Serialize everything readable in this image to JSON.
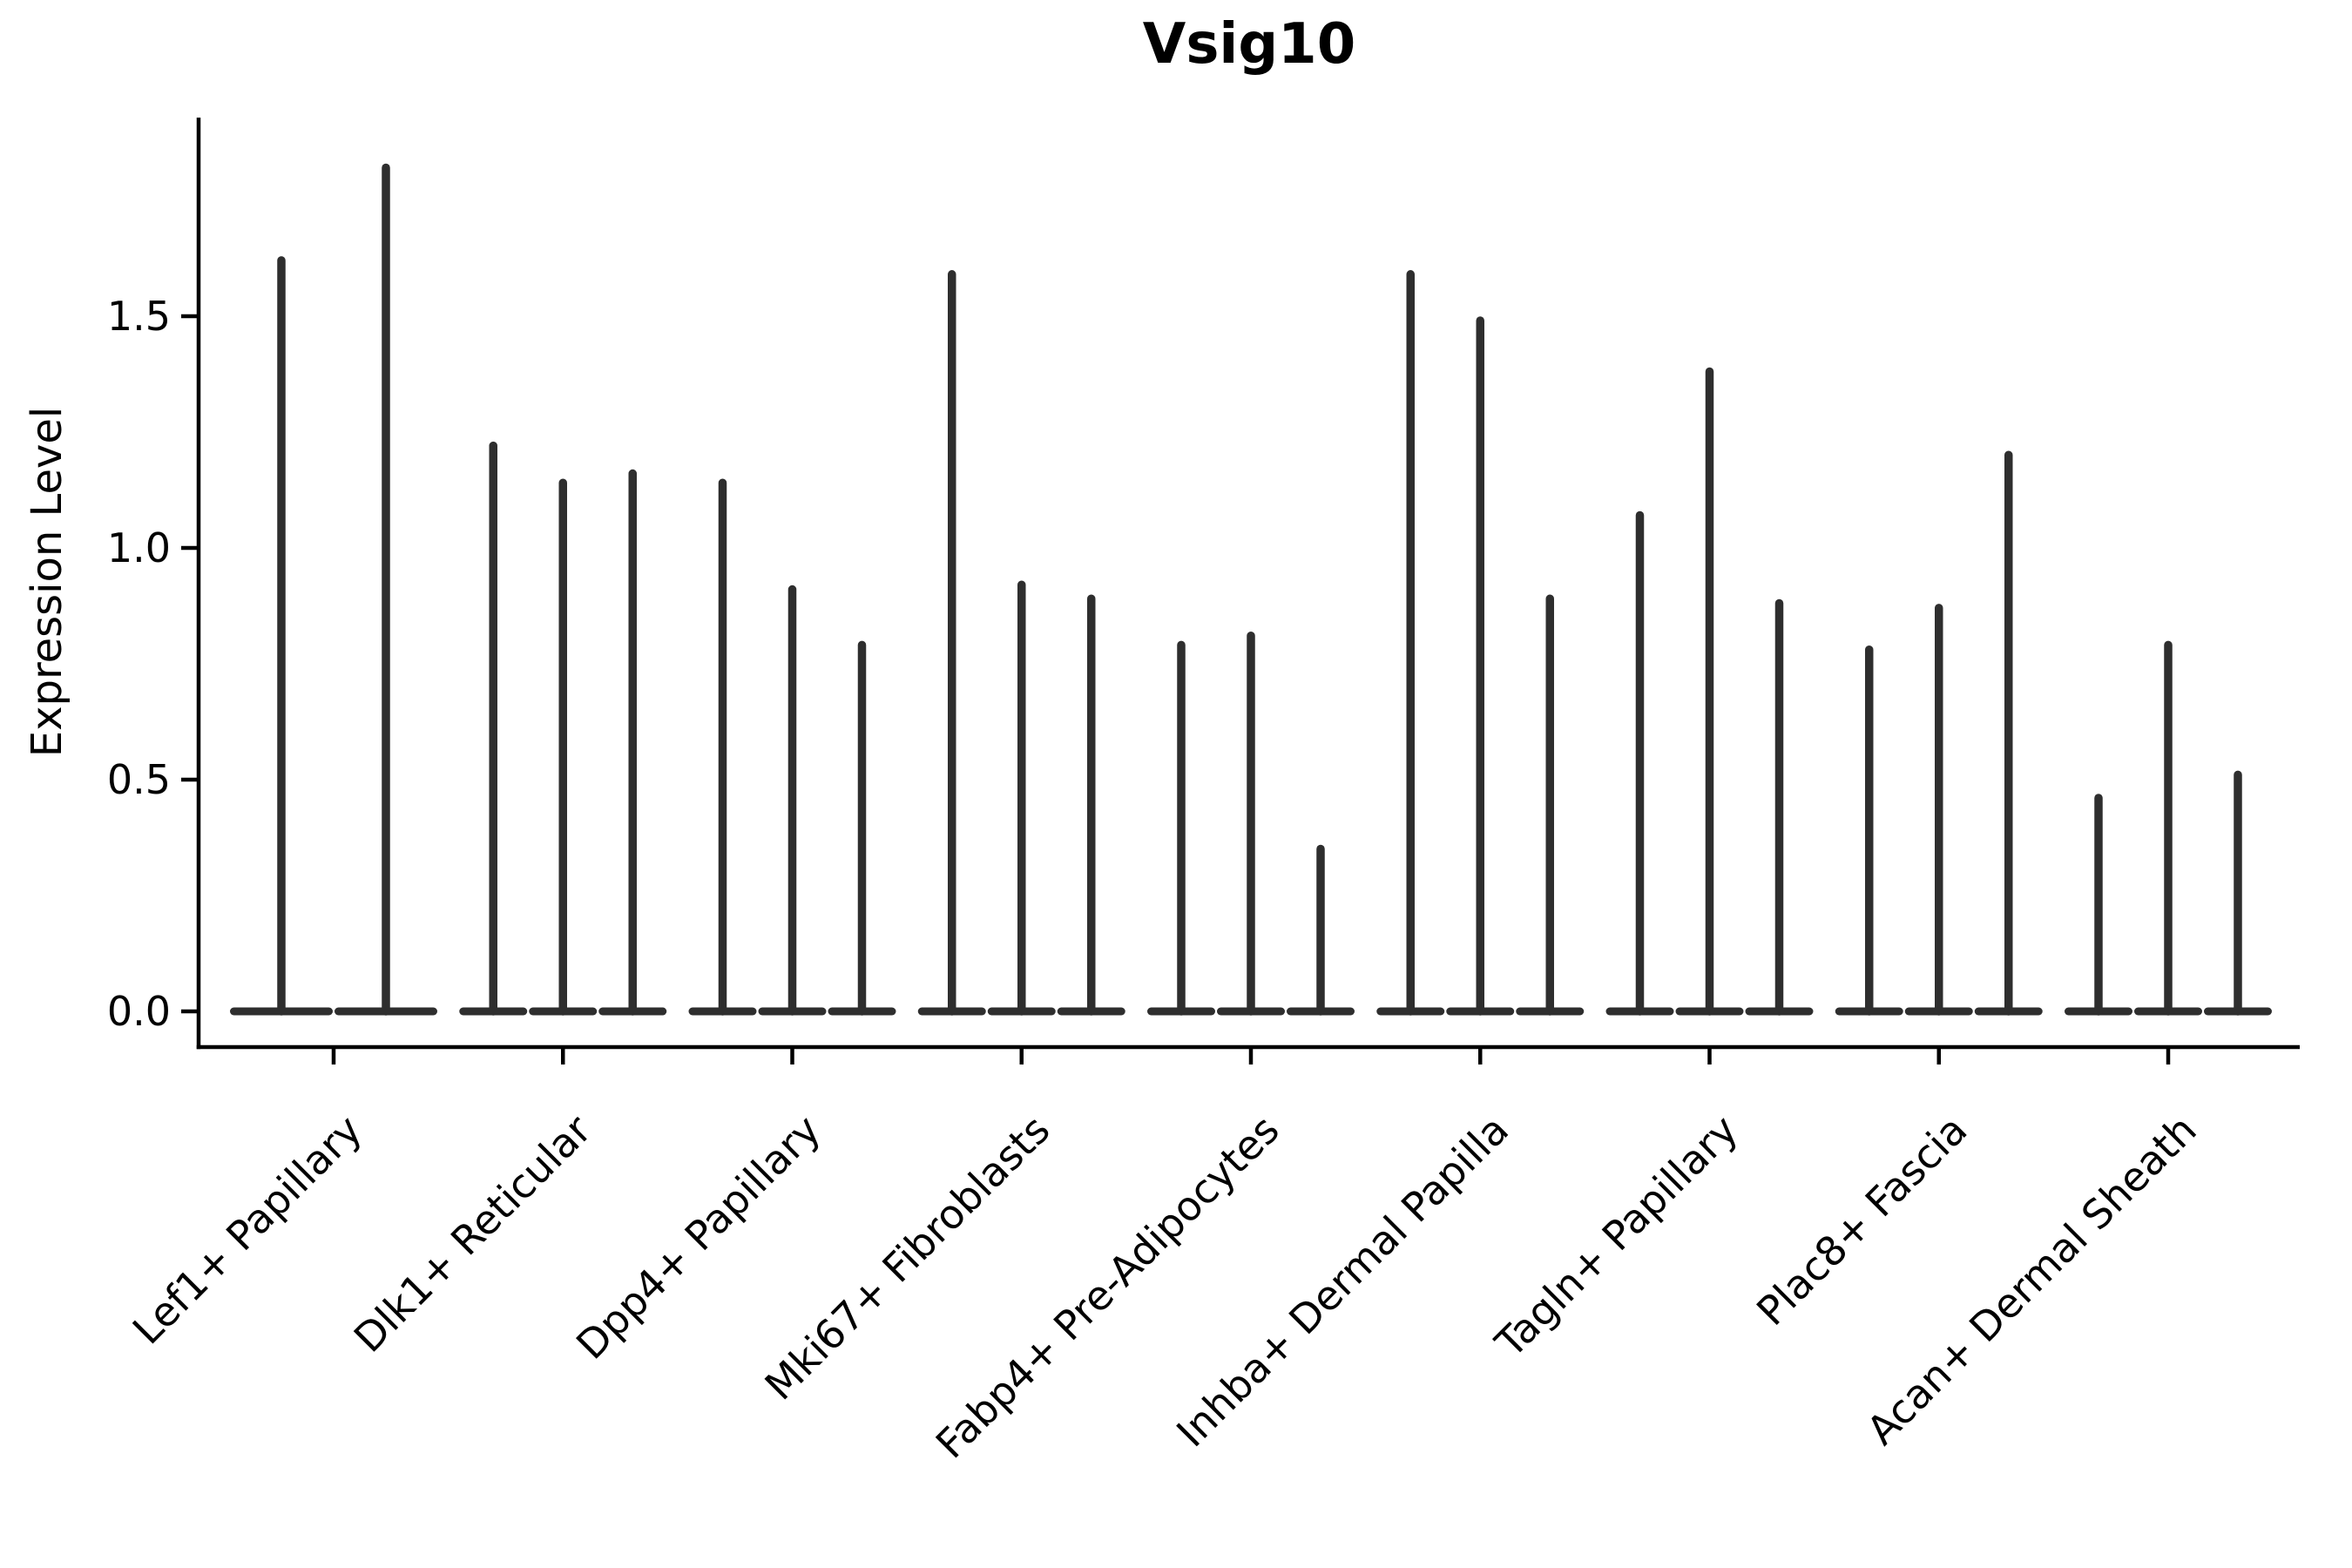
{
  "figure": {
    "title": "Vsig10",
    "ylabel": "Expression Level"
  },
  "chart_data": {
    "type": "violin",
    "title": "Vsig10",
    "xlabel": "",
    "ylabel": "Expression Level",
    "ylim": [
      -0.08,
      1.93
    ],
    "yticks": [
      0.0,
      0.5,
      1.0,
      1.5
    ],
    "ytick_labels": [
      "0.0",
      "0.5",
      "1.0",
      "1.5"
    ],
    "grid": false,
    "legend": "none",
    "baseline_value": 0.0,
    "violin_color": "#2e2e2e",
    "axis_color": "#000000",
    "background_color": "#ffffff",
    "categories": [
      {
        "label": "Lef1+ Papillary",
        "violin_maxima": [
          1.63,
          1.83
        ]
      },
      {
        "label": "Dlk1+ Reticular",
        "violin_maxima": [
          1.23,
          1.15,
          1.17
        ]
      },
      {
        "label": "Dpp4+ Papillary",
        "violin_maxima": [
          1.15,
          0.92,
          0.8
        ]
      },
      {
        "label": "Mki67+ Fibroblasts",
        "violin_maxima": [
          1.6,
          0.93,
          0.9
        ]
      },
      {
        "label": "Fabp4+ Pre-Adipocytes",
        "violin_maxima": [
          0.8,
          0.82,
          0.36
        ]
      },
      {
        "label": "Inhba+ Dermal Papilla",
        "violin_maxima": [
          1.6,
          1.5,
          0.9
        ]
      },
      {
        "label": "Tagln+ Papillary",
        "violin_maxima": [
          1.08,
          1.39,
          0.89
        ]
      },
      {
        "label": "Plac8+ Fascia",
        "violin_maxima": [
          0.79,
          0.88,
          1.21
        ]
      },
      {
        "label": "Acan+ Dermal Sheath",
        "violin_maxima": [
          0.47,
          0.8,
          0.52
        ]
      }
    ]
  }
}
